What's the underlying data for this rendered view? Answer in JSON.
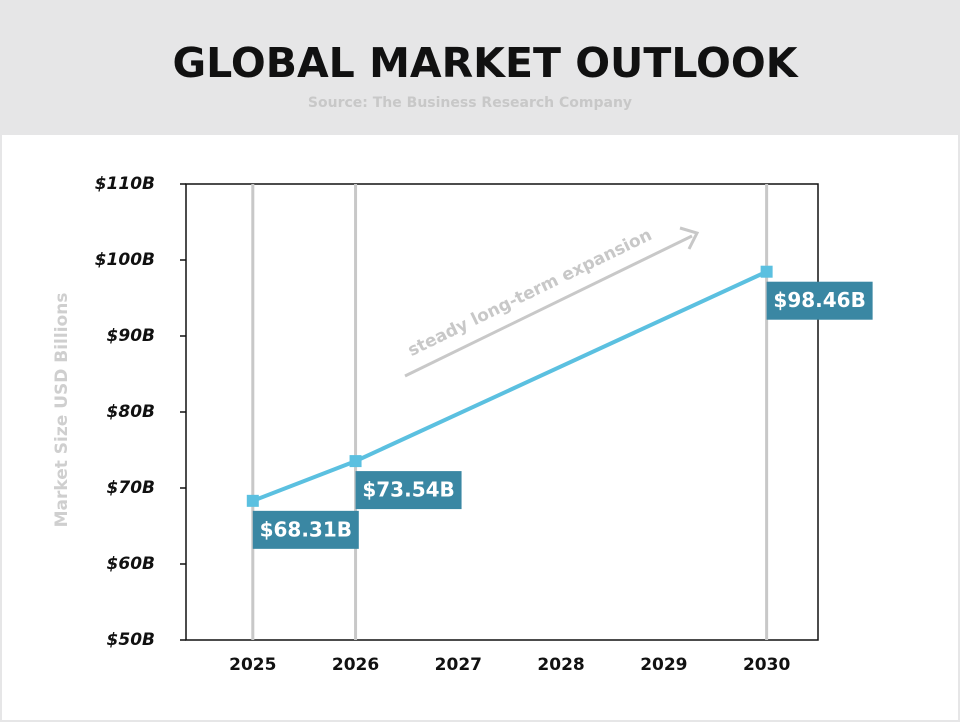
{
  "chart_data": {
    "type": "line",
    "title": "GLOBAL MARKET OUTLOOK",
    "subtitle": "Source: The Business Research Company",
    "y_label": "Market Size USD Billions",
    "annotation": "steady long-term expansion",
    "x": [
      2025,
      2026,
      2030
    ],
    "values": [
      68.31,
      73.54,
      98.46
    ],
    "value_labels": [
      "$68.31B",
      "$73.54B",
      "$98.46B"
    ],
    "color": "#5bc0e0",
    "label_color": "#3a87a3",
    "xlim": [
      2024.35,
      2030.5
    ],
    "xticks": [
      2025,
      2026,
      2027,
      2028,
      2029,
      2030
    ],
    "ylim": [
      50,
      110
    ],
    "yticks": [
      {
        "value": 50,
        "label": "$50B"
      },
      {
        "value": 60,
        "label": "$60B"
      },
      {
        "value": 70,
        "label": "$70B"
      },
      {
        "value": 80,
        "label": "$80B"
      },
      {
        "value": 90,
        "label": "$90B"
      },
      {
        "value": 100,
        "label": "$100B"
      },
      {
        "value": 110,
        "label": "$110B"
      }
    ]
  }
}
